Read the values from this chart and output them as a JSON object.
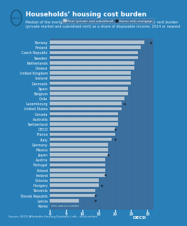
{
  "title": "Households’ housing cost burden",
  "subtitle": "Median of the mortgage (principal repayment and interest payments) or rent burden\n(private market and subsidised rent) as a share of disposable income, 2014 or nearest",
  "legend_rent": "Rent (private and subsidised)",
  "legend_owner": "Owner with mortgage",
  "countries": [
    "Norway",
    "Finland",
    "Czech Republic",
    "Sweden",
    "Netherlands",
    "Greece",
    "United Kingdom",
    "Iceland",
    "Denmark",
    "Spain",
    "Belgium",
    "Chile",
    "Luxembourg",
    "United States",
    "Canada",
    "Australia",
    "Switzerland",
    "OECD",
    "France",
    "Italy",
    "Germany",
    "Mexico",
    "Japan",
    "Austria",
    "Portugal",
    "Poland",
    "Ireland",
    "Estonia",
    "Hungary",
    "Slovenia",
    "Slovak Republic",
    "Latvia",
    "Korea"
  ],
  "rent_values": [
    29,
    28,
    27,
    27,
    26,
    26,
    25,
    25,
    25,
    24,
    24,
    23,
    22,
    22,
    21,
    21,
    21,
    20,
    20,
    19,
    18,
    18,
    18,
    17,
    17,
    17,
    17,
    15,
    15,
    14,
    14,
    9,
    0
  ],
  "owner_dots": [
    31,
    null,
    null,
    null,
    null,
    null,
    null,
    null,
    null,
    null,
    null,
    null,
    23,
    null,
    null,
    null,
    null,
    20,
    null,
    20,
    null,
    null,
    18,
    null,
    null,
    null,
    17,
    null,
    16,
    null,
    14,
    14,
    null
  ],
  "bar_color": "#b8c8d4",
  "dot_color": "#2c3e50",
  "bg_color": "#2980b9",
  "panel_bg": "#3a6f9e",
  "header_bg": "#5dade2",
  "text_color": "#ffffff",
  "source_color": "#d0e8f5",
  "xlim": [
    0,
    32
  ],
  "xticks": [
    0,
    5,
    10,
    15,
    20,
    25,
    30
  ],
  "title_fontsize": 6.5,
  "subtitle_fontsize": 3.6,
  "label_fontsize": 3.5,
  "tick_fontsize": 3.5,
  "source_text": "Source: OECD Affordable Housing Database | afh...oecd.net/ahs"
}
